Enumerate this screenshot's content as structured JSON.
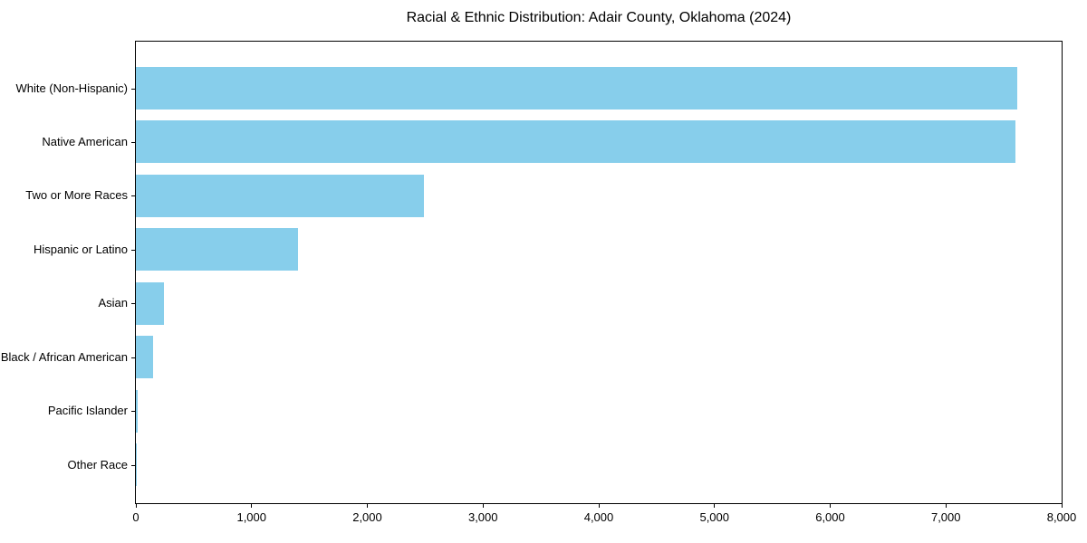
{
  "chart_data": {
    "type": "bar",
    "orientation": "horizontal",
    "title": "Racial & Ethnic Distribution: Adair County, Oklahoma (2024)",
    "categories": [
      "White (Non-Hispanic)",
      "Native American",
      "Two or More Races",
      "Hispanic or Latino",
      "Asian",
      "Black / African American",
      "Pacific Islander",
      "Other Race"
    ],
    "values": [
      7620,
      7600,
      2490,
      1400,
      245,
      145,
      15,
      5
    ],
    "xlabel": "",
    "ylabel": "",
    "xlim": [
      0,
      8000
    ],
    "xticks": [
      0,
      1000,
      2000,
      3000,
      4000,
      5000,
      6000,
      7000,
      8000
    ],
    "xtick_labels": [
      "0",
      "1,000",
      "2,000",
      "3,000",
      "4,000",
      "5,000",
      "6,000",
      "7,000",
      "8,000"
    ],
    "bar_color": "#87CEEB",
    "axis_color": "#000000",
    "text_color": "#000000",
    "background_color": "#FFFFFF",
    "grid": false,
    "legend": "none"
  }
}
